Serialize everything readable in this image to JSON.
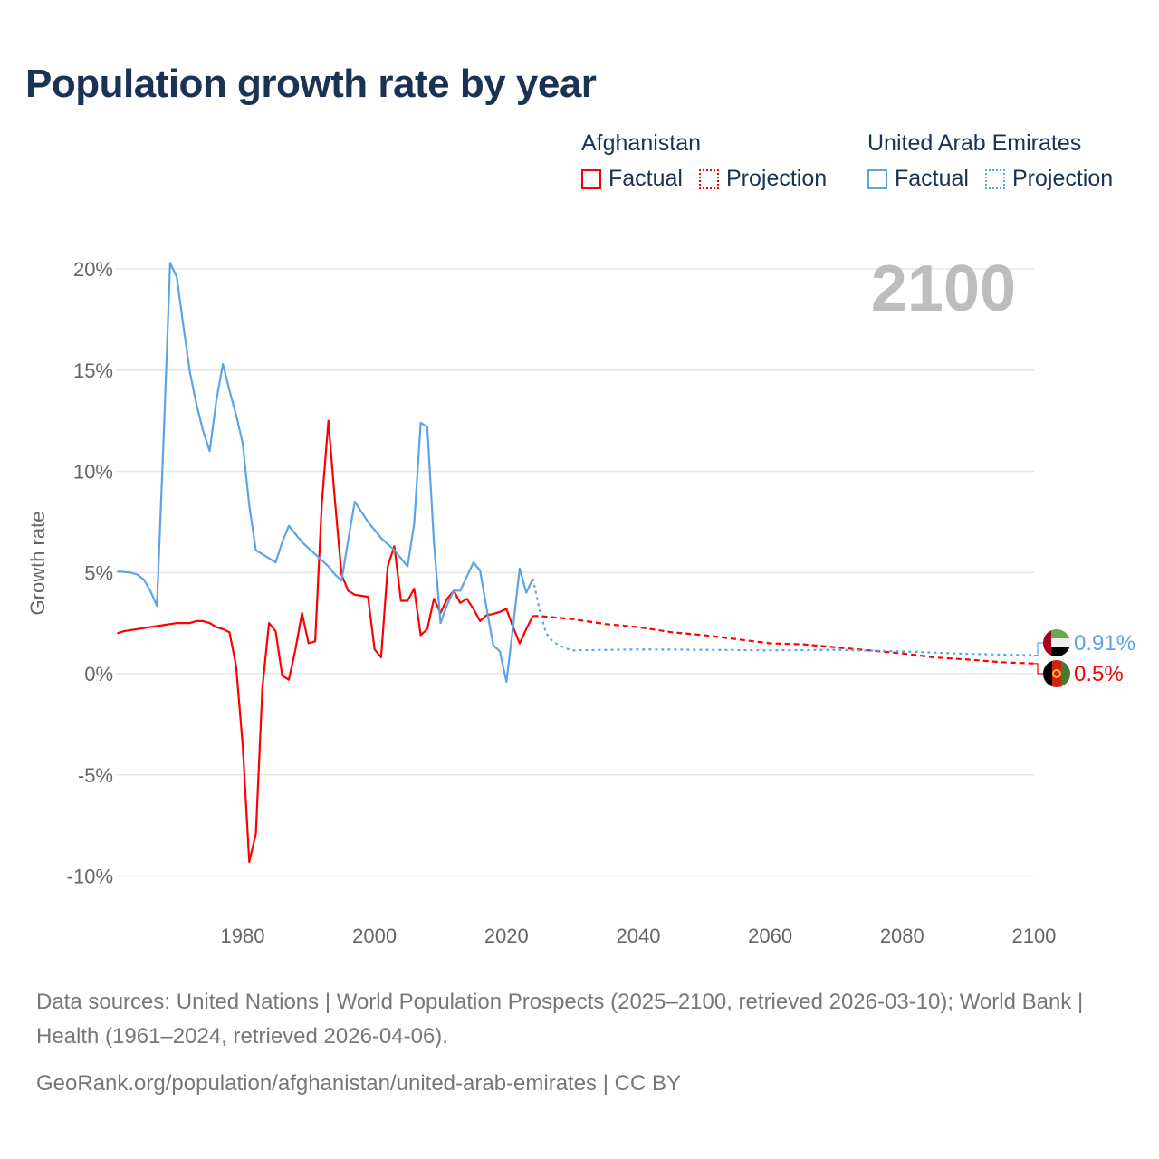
{
  "chart_data": {
    "type": "line",
    "title": "Population growth rate by year",
    "ylabel": "Growth rate",
    "xlabel": "",
    "xlim": [
      1961,
      2100
    ],
    "ylim": [
      -10,
      20
    ],
    "x_ticks": [
      1980,
      2000,
      2020,
      2040,
      2060,
      2080,
      2100
    ],
    "x_tick_labels": [
      "1980",
      "2000",
      "2020",
      "2040",
      "2060",
      "2080",
      "2100"
    ],
    "y_ticks": [
      20,
      15,
      10,
      5,
      0,
      -5,
      -10
    ],
    "y_tick_labels": [
      "20%",
      "15%",
      "10%",
      "5%",
      "0%",
      "-5%",
      "-10%"
    ],
    "grid": true,
    "legend_placement": "top-right",
    "current_year": "2100",
    "series": [
      {
        "name": "Afghanistan",
        "color": "#ff0000",
        "end_label": "0.5%",
        "factual": {
          "label": "Factual",
          "x_start": 1961,
          "values": [
            2.0,
            2.1,
            2.15,
            2.2,
            2.25,
            2.3,
            2.35,
            2.4,
            2.45,
            2.5,
            2.5,
            2.5,
            2.6,
            2.6,
            2.5,
            2.3,
            2.2,
            2.05,
            0.4,
            -3.5,
            -9.3,
            -7.9,
            -0.7,
            2.5,
            2.1,
            -0.1,
            -0.3,
            1.2,
            3.0,
            1.5,
            1.6,
            8.4,
            12.5,
            8.5,
            4.9,
            4.1,
            3.9,
            3.85,
            3.8,
            1.2,
            0.8,
            5.3,
            6.3,
            3.6,
            3.6,
            4.2,
            1.9,
            2.2,
            3.7,
            3.0,
            3.7,
            4.1,
            3.5,
            3.7,
            3.2,
            2.6,
            2.9,
            2.95,
            3.05,
            3.2,
            2.3,
            1.5,
            2.2,
            2.85
          ]
        },
        "projection": {
          "label": "Projection",
          "x": [
            2024,
            2025,
            2030,
            2035,
            2040,
            2045,
            2050,
            2055,
            2060,
            2065,
            2070,
            2075,
            2080,
            2085,
            2090,
            2095,
            2100
          ],
          "values": [
            2.85,
            2.85,
            2.7,
            2.45,
            2.3,
            2.05,
            1.9,
            1.7,
            1.5,
            1.45,
            1.3,
            1.15,
            1.0,
            0.8,
            0.7,
            0.57,
            0.5
          ]
        }
      },
      {
        "name": "United Arab Emirates",
        "color": "#5ba4e8",
        "end_label": "0.91%",
        "factual": {
          "label": "Factual",
          "x_start": 1961,
          "values": [
            5.05,
            5.03,
            5.0,
            4.9,
            4.65,
            4.1,
            3.35,
            11.5,
            20.3,
            19.6,
            17.2,
            14.9,
            13.3,
            12.0,
            11.0,
            13.5,
            15.3,
            14.0,
            12.8,
            11.4,
            8.3,
            6.1,
            5.9,
            5.7,
            5.5,
            6.5,
            7.3,
            6.9,
            6.5,
            6.2,
            5.9,
            5.6,
            5.3,
            4.9,
            4.6,
            6.6,
            8.5,
            8.0,
            7.5,
            7.1,
            6.7,
            6.4,
            6.1,
            5.7,
            5.3,
            7.4,
            12.4,
            12.2,
            6.5,
            2.5,
            3.4,
            4.1,
            4.1,
            4.8,
            5.5,
            5.1,
            3.2,
            1.4,
            1.1,
            -0.4,
            2.3,
            5.2,
            4.0,
            4.7
          ]
        },
        "projection": {
          "label": "Projection",
          "x": [
            2024,
            2025,
            2026,
            2027,
            2028,
            2029,
            2030,
            2040,
            2050,
            2060,
            2070,
            2080,
            2090,
            2100
          ],
          "values": [
            4.7,
            3.2,
            2.0,
            1.6,
            1.4,
            1.25,
            1.15,
            1.2,
            1.18,
            1.15,
            1.18,
            1.1,
            0.98,
            0.91
          ]
        }
      }
    ]
  },
  "legend": {
    "afghanistan": {
      "name": "Afghanistan",
      "factual": "Factual",
      "projection": "Projection"
    },
    "uae": {
      "name": "United Arab Emirates",
      "factual": "Factual",
      "projection": "Projection"
    }
  },
  "footer": {
    "sources": "Data sources: United Nations | World Population Prospects (2025–2100, retrieved 2026-03-10); World Bank | Health (1961–2024, retrieved 2026-04-06).",
    "url": "GeoRank.org/population/afghanistan/united-arab-emirates | CC BY"
  },
  "flags": {
    "afghanistan": "afghanistan-flag",
    "uae": "uae-flag"
  }
}
